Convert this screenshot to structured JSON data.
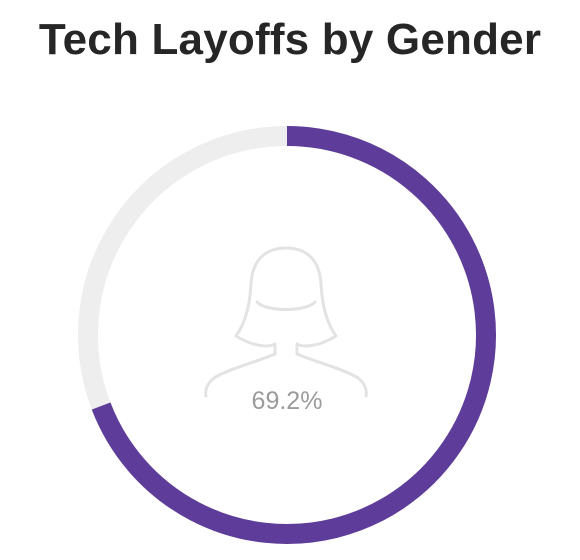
{
  "chart_data": {
    "type": "pie",
    "title": "Tech Layoffs by Gender",
    "center_label": "69.2%",
    "center_icon": "female-person-outline-icon",
    "slices": [
      {
        "value": 69.2,
        "color": "#5e3c99"
      },
      {
        "value": 30.8,
        "color": "#eeeeee"
      }
    ],
    "legend": "none"
  }
}
